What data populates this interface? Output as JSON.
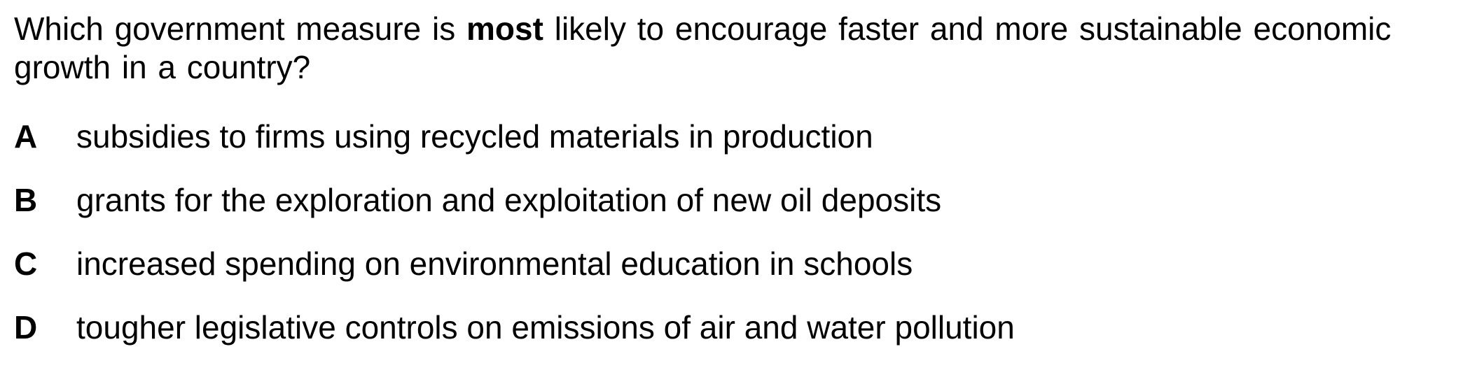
{
  "question": {
    "text_before": "Which government measure is ",
    "emphasis": "most",
    "text_after": " likely to encourage faster and more sustainable economic growth in a country?"
  },
  "options": [
    {
      "letter": "A",
      "text": "subsidies to firms using recycled materials in production"
    },
    {
      "letter": "B",
      "text": "grants for the exploration and exploitation of new oil deposits"
    },
    {
      "letter": "C",
      "text": "increased spending on environmental education in schools"
    },
    {
      "letter": "D",
      "text": "tougher legislative controls on emissions of air and water pollution"
    }
  ]
}
